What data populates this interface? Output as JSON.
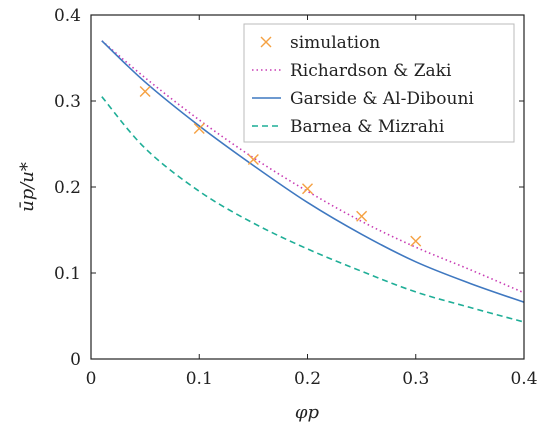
{
  "chart_data": {
    "type": "line",
    "xlabel": "φp",
    "ylabel": "ūp/u*",
    "xlim": [
      0,
      0.4
    ],
    "ylim": [
      0,
      0.4
    ],
    "x_ticks": [
      0,
      0.1,
      0.2,
      0.3,
      0.4
    ],
    "y_ticks": [
      0,
      0.1,
      0.2,
      0.3,
      0.4
    ],
    "x_tick_labels": [
      "0",
      "0.1",
      "0.2",
      "0.3",
      "0.4"
    ],
    "y_tick_labels": [
      "0",
      "0.1",
      "0.2",
      "0.3",
      "0.4"
    ],
    "grid": false,
    "legend_position": "top-right",
    "series": [
      {
        "name": "simulation",
        "kind": "scatter",
        "marker": "x",
        "color": "#f5a142",
        "x": [
          0.05,
          0.1,
          0.15,
          0.2,
          0.25,
          0.3
        ],
        "y": [
          0.311,
          0.268,
          0.232,
          0.198,
          0.166,
          0.137
        ]
      },
      {
        "name": "Richardson & Zaki",
        "kind": "line",
        "style": "dotted",
        "color": "#c83cb4",
        "x": [
          0.01,
          0.05,
          0.1,
          0.15,
          0.2,
          0.25,
          0.3,
          0.35,
          0.4
        ],
        "y": [
          0.37,
          0.327,
          0.278,
          0.234,
          0.195,
          0.16,
          0.13,
          0.104,
          0.077
        ]
      },
      {
        "name": "Garside & Al-Dibouni",
        "kind": "line",
        "style": "solid",
        "color": "#3f78c0",
        "x": [
          0.01,
          0.05,
          0.1,
          0.15,
          0.2,
          0.25,
          0.3,
          0.35,
          0.4
        ],
        "y": [
          0.37,
          0.322,
          0.271,
          0.225,
          0.182,
          0.145,
          0.113,
          0.088,
          0.066
        ]
      },
      {
        "name": "Barnea & Mizrahi",
        "kind": "line",
        "style": "dashed",
        "color": "#1fae97",
        "x": [
          0.01,
          0.05,
          0.1,
          0.15,
          0.2,
          0.25,
          0.3,
          0.35,
          0.4
        ],
        "y": [
          0.305,
          0.245,
          0.195,
          0.158,
          0.128,
          0.102,
          0.078,
          0.06,
          0.043
        ]
      }
    ]
  }
}
